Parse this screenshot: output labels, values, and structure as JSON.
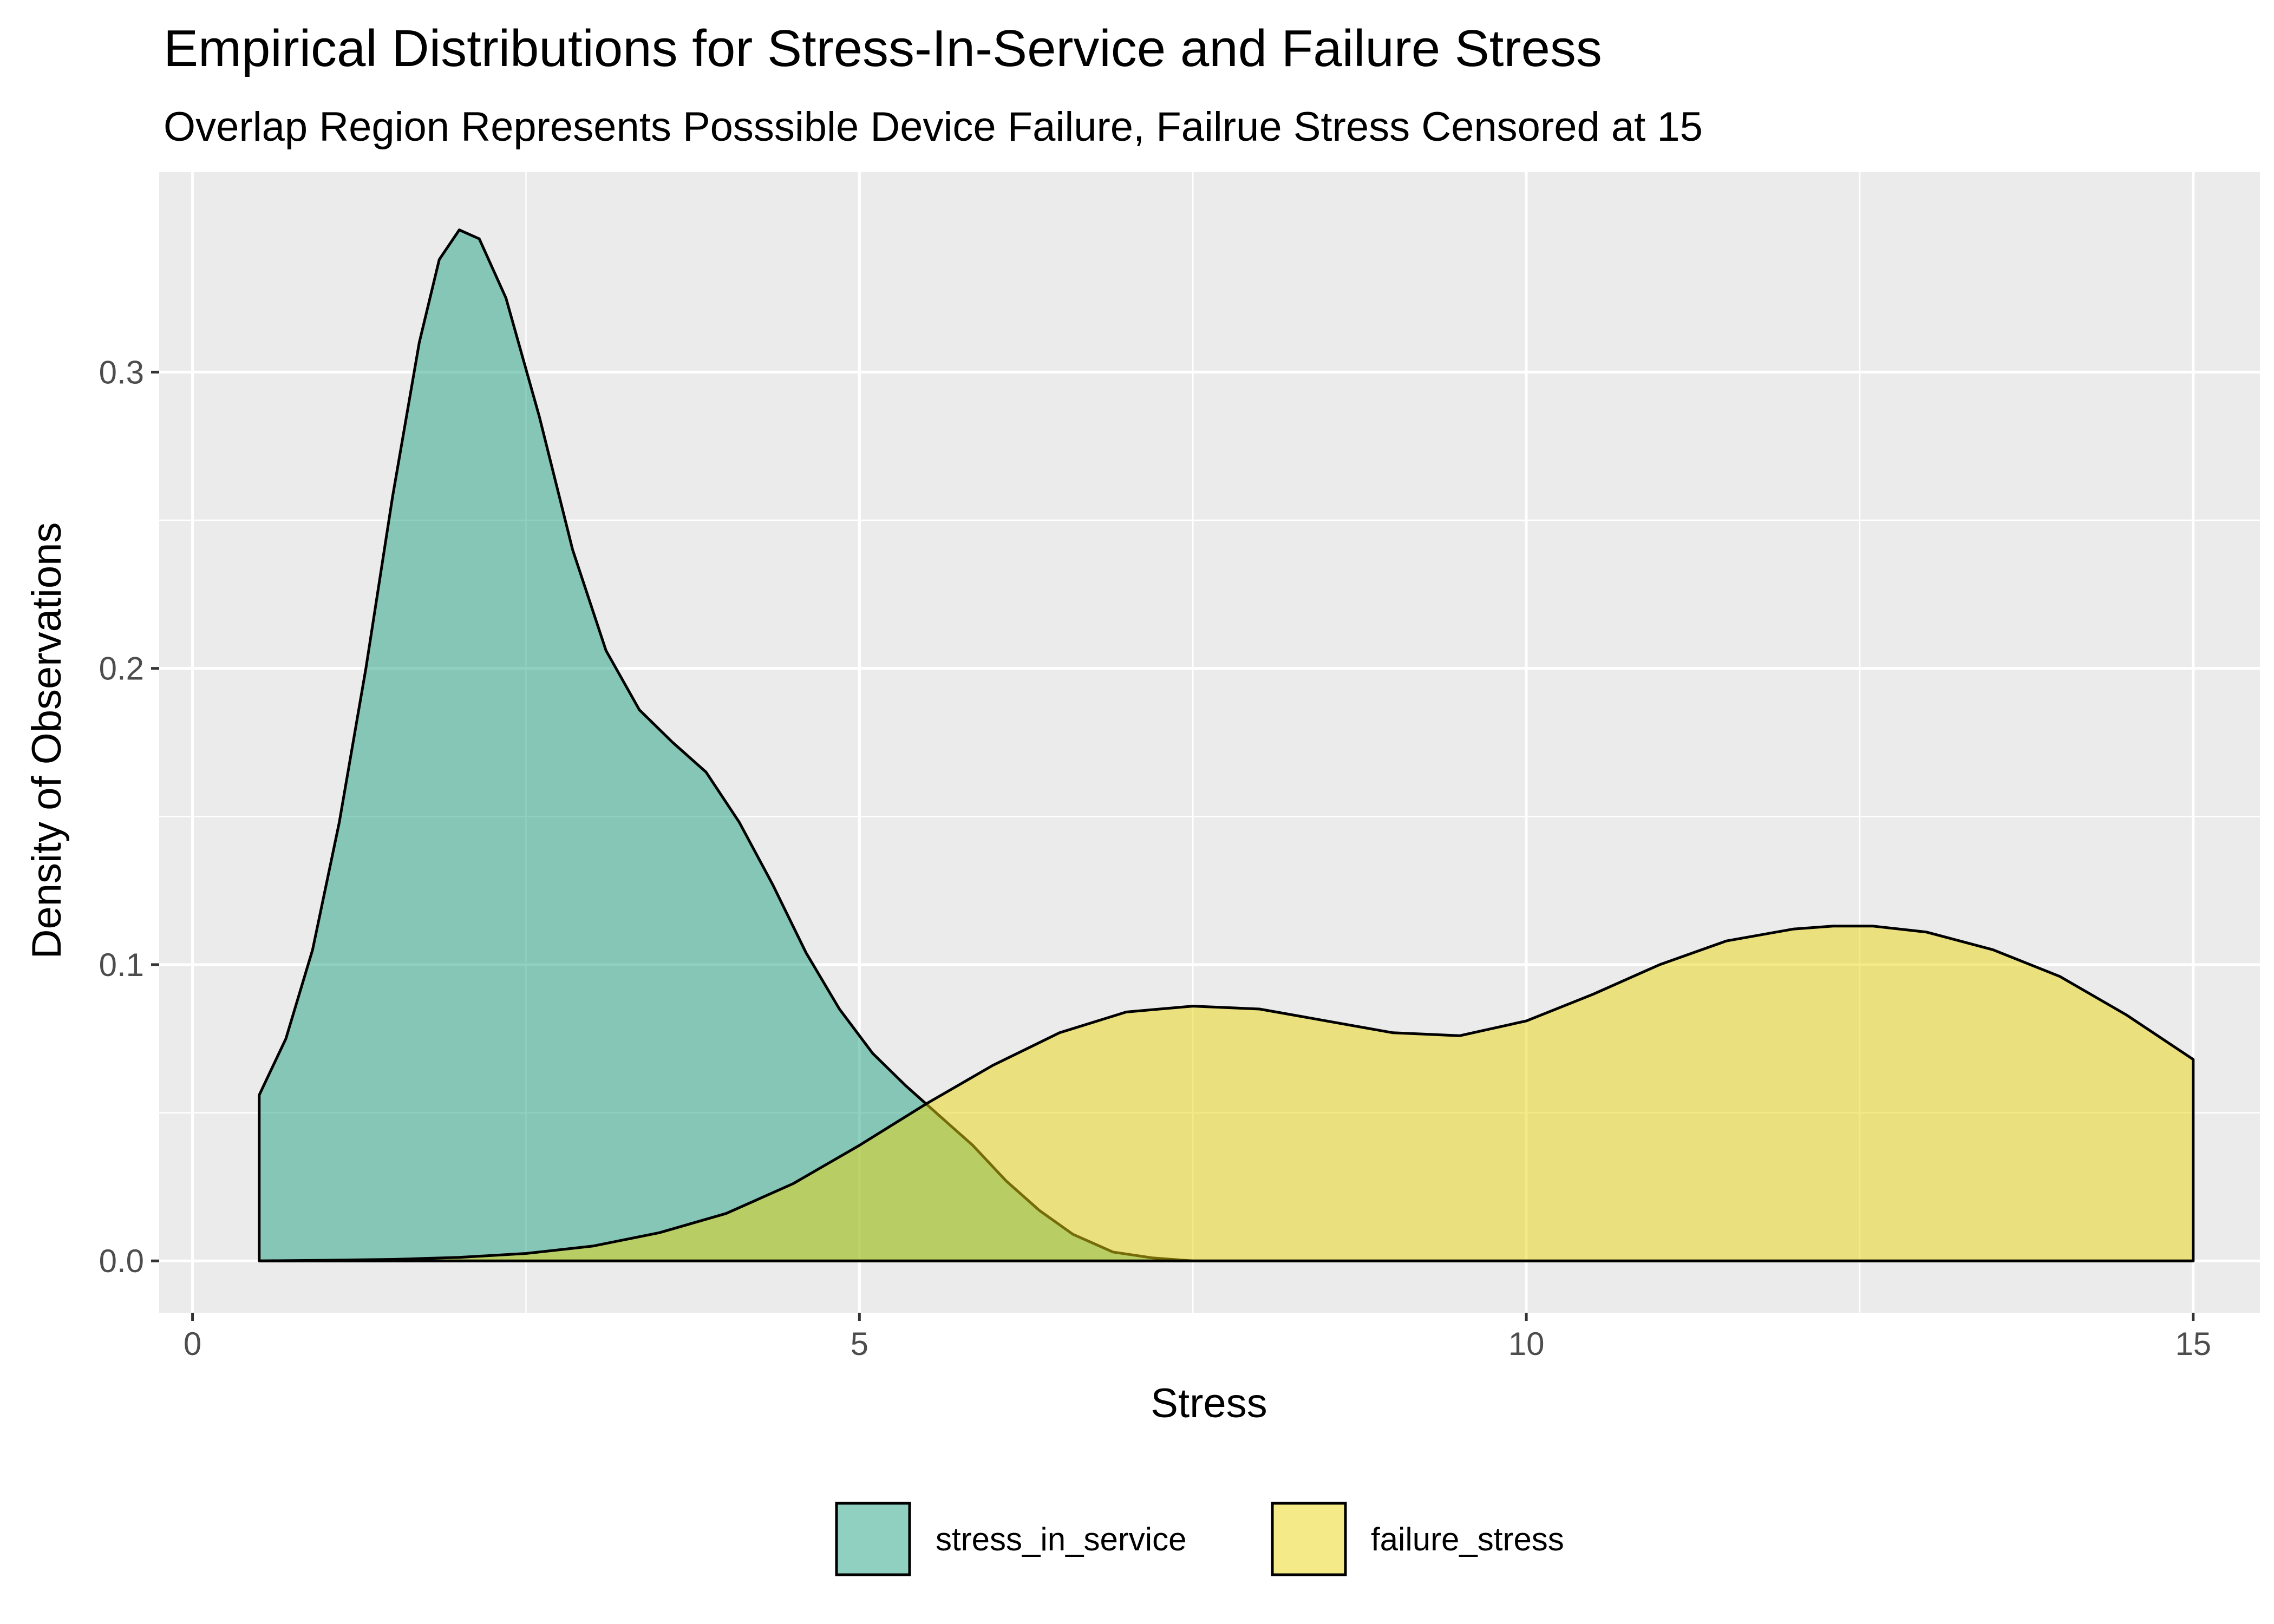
{
  "chart_data": {
    "type": "area",
    "title": "Empirical Distributions for Stress-In-Service and Failure Stress",
    "subtitle": "Overlap Region Represents Posssible Device Failure, Failrue Stress Censored at 15",
    "xlabel": "Stress",
    "ylabel": "Density of Observations",
    "xlim": [
      -0.25,
      15.5
    ],
    "ylim": [
      -0.0175,
      0.3675
    ],
    "x_ticks": [
      0,
      5,
      10,
      15
    ],
    "x_tick_labels": [
      "0",
      "5",
      "10",
      "15"
    ],
    "y_ticks": [
      0.0,
      0.1,
      0.2,
      0.3
    ],
    "y_tick_labels": [
      "0.0",
      "0.1",
      "0.2",
      "0.3"
    ],
    "grid": true,
    "legend_position": "bottom",
    "series": [
      {
        "name": "stress_in_service",
        "color": "#21a281",
        "fill_opacity": 0.5,
        "points": [
          [
            0.5,
            0.0
          ],
          [
            0.5,
            0.056
          ],
          [
            0.7,
            0.075
          ],
          [
            0.9,
            0.105
          ],
          [
            1.1,
            0.148
          ],
          [
            1.3,
            0.2
          ],
          [
            1.5,
            0.258
          ],
          [
            1.7,
            0.31
          ],
          [
            1.85,
            0.338
          ],
          [
            2.0,
            0.348
          ],
          [
            2.15,
            0.345
          ],
          [
            2.35,
            0.325
          ],
          [
            2.6,
            0.285
          ],
          [
            2.85,
            0.24
          ],
          [
            3.1,
            0.206
          ],
          [
            3.35,
            0.186
          ],
          [
            3.6,
            0.175
          ],
          [
            3.85,
            0.165
          ],
          [
            4.1,
            0.148
          ],
          [
            4.35,
            0.127
          ],
          [
            4.6,
            0.104
          ],
          [
            4.85,
            0.085
          ],
          [
            5.1,
            0.07
          ],
          [
            5.35,
            0.059
          ],
          [
            5.6,
            0.049
          ],
          [
            5.85,
            0.039
          ],
          [
            6.1,
            0.027
          ],
          [
            6.35,
            0.017
          ],
          [
            6.6,
            0.009
          ],
          [
            6.9,
            0.003
          ],
          [
            7.2,
            0.001
          ],
          [
            7.5,
            0.0
          ],
          [
            8.0,
            0.0
          ],
          [
            10.0,
            0.0
          ],
          [
            12.0,
            0.0
          ],
          [
            15.0,
            0.0
          ]
        ]
      },
      {
        "name": "failure_stress",
        "color": "#ead612",
        "fill_opacity": 0.5,
        "points": [
          [
            0.5,
            0.0
          ],
          [
            1.0,
            0.0002
          ],
          [
            1.5,
            0.0005
          ],
          [
            2.0,
            0.0012
          ],
          [
            2.5,
            0.0025
          ],
          [
            3.0,
            0.005
          ],
          [
            3.5,
            0.0095
          ],
          [
            4.0,
            0.016
          ],
          [
            4.5,
            0.026
          ],
          [
            5.0,
            0.039
          ],
          [
            5.5,
            0.053
          ],
          [
            6.0,
            0.066
          ],
          [
            6.5,
            0.077
          ],
          [
            7.0,
            0.084
          ],
          [
            7.5,
            0.086
          ],
          [
            8.0,
            0.085
          ],
          [
            8.5,
            0.081
          ],
          [
            9.0,
            0.077
          ],
          [
            9.5,
            0.076
          ],
          [
            10.0,
            0.081
          ],
          [
            10.5,
            0.09
          ],
          [
            11.0,
            0.1
          ],
          [
            11.5,
            0.108
          ],
          [
            12.0,
            0.112
          ],
          [
            12.3,
            0.113
          ],
          [
            12.6,
            0.113
          ],
          [
            13.0,
            0.111
          ],
          [
            13.5,
            0.105
          ],
          [
            14.0,
            0.096
          ],
          [
            14.5,
            0.083
          ],
          [
            15.0,
            0.068
          ],
          [
            15.0,
            0.0
          ]
        ]
      }
    ]
  }
}
